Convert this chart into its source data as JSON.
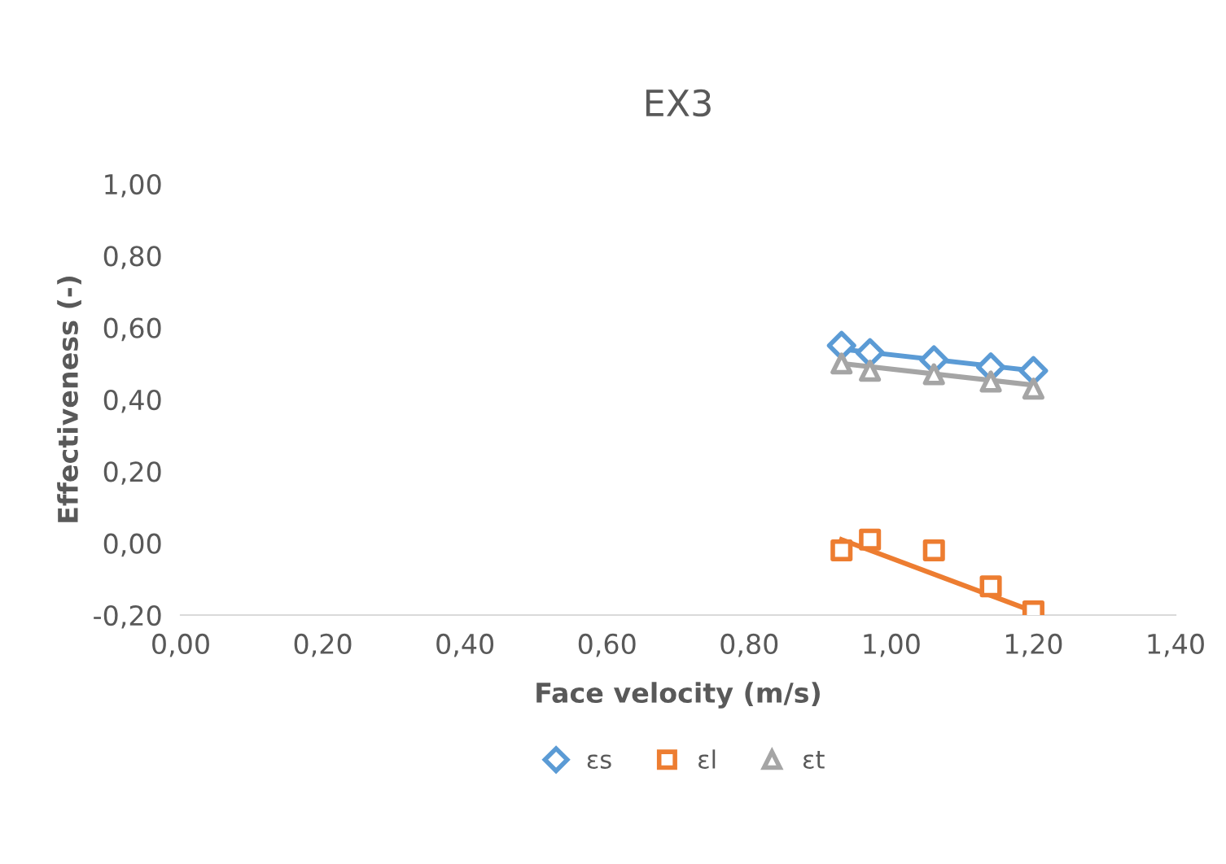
{
  "chart_data": {
    "type": "scatter",
    "title": "EX3",
    "xlabel": "Face velocity (m/s)",
    "ylabel": "Effectiveness (-)",
    "xlim": [
      0,
      1.4
    ],
    "xticks": [
      {
        "value": 0,
        "label": "0,00"
      },
      {
        "value": 0.2,
        "label": "0,20"
      },
      {
        "value": 0.4,
        "label": "0,40"
      },
      {
        "value": 0.6,
        "label": "0,60"
      },
      {
        "value": 0.8,
        "label": "0,80"
      },
      {
        "value": 1.0,
        "label": "1,00"
      },
      {
        "value": 1.2,
        "label": "1,20"
      },
      {
        "value": 1.4,
        "label": "1,40"
      }
    ],
    "ylim": [
      -0.2,
      1.0
    ],
    "yticks": [
      {
        "value": -0.2,
        "label": "-0,20"
      },
      {
        "value": 0,
        "label": "0,00"
      },
      {
        "value": 0.2,
        "label": "0,20"
      },
      {
        "value": 0.4,
        "label": "0,40"
      },
      {
        "value": 0.6,
        "label": "0,60"
      },
      {
        "value": 0.8,
        "label": "0,80"
      },
      {
        "value": 1.0,
        "label": "1,00"
      }
    ],
    "grid": false,
    "legend": "bottom",
    "series": [
      {
        "name": "εs",
        "color": "#5b9bd5",
        "marker": "diamond",
        "x": [
          0.93,
          0.97,
          1.06,
          1.14,
          1.2
        ],
        "values": [
          0.55,
          0.53,
          0.51,
          0.49,
          0.48
        ]
      },
      {
        "name": "εl",
        "color": "#ed7d31",
        "marker": "square",
        "x": [
          0.93,
          0.97,
          1.06,
          1.14,
          1.2
        ],
        "values": [
          -0.02,
          0.01,
          -0.02,
          -0.12,
          -0.19
        ]
      },
      {
        "name": "εt",
        "color": "#a5a5a5",
        "marker": "triangle",
        "x": [
          0.93,
          0.97,
          1.06,
          1.14,
          1.2
        ],
        "values": [
          0.5,
          0.48,
          0.47,
          0.45,
          0.43
        ]
      },
      {
        "type": "line",
        "color": "#5b9bd5",
        "marker": "none",
        "x": [
          0.93,
          1.2
        ],
        "values": [
          0.54,
          0.48
        ]
      },
      {
        "type": "line",
        "color": "#ed7d31",
        "marker": "none",
        "x": [
          0.93,
          1.2
        ],
        "values": [
          0.01,
          -0.19
        ]
      },
      {
        "type": "line",
        "color": "#a5a5a5",
        "marker": "none",
        "x": [
          0.93,
          1.2
        ],
        "values": [
          0.5,
          0.44
        ]
      }
    ]
  }
}
